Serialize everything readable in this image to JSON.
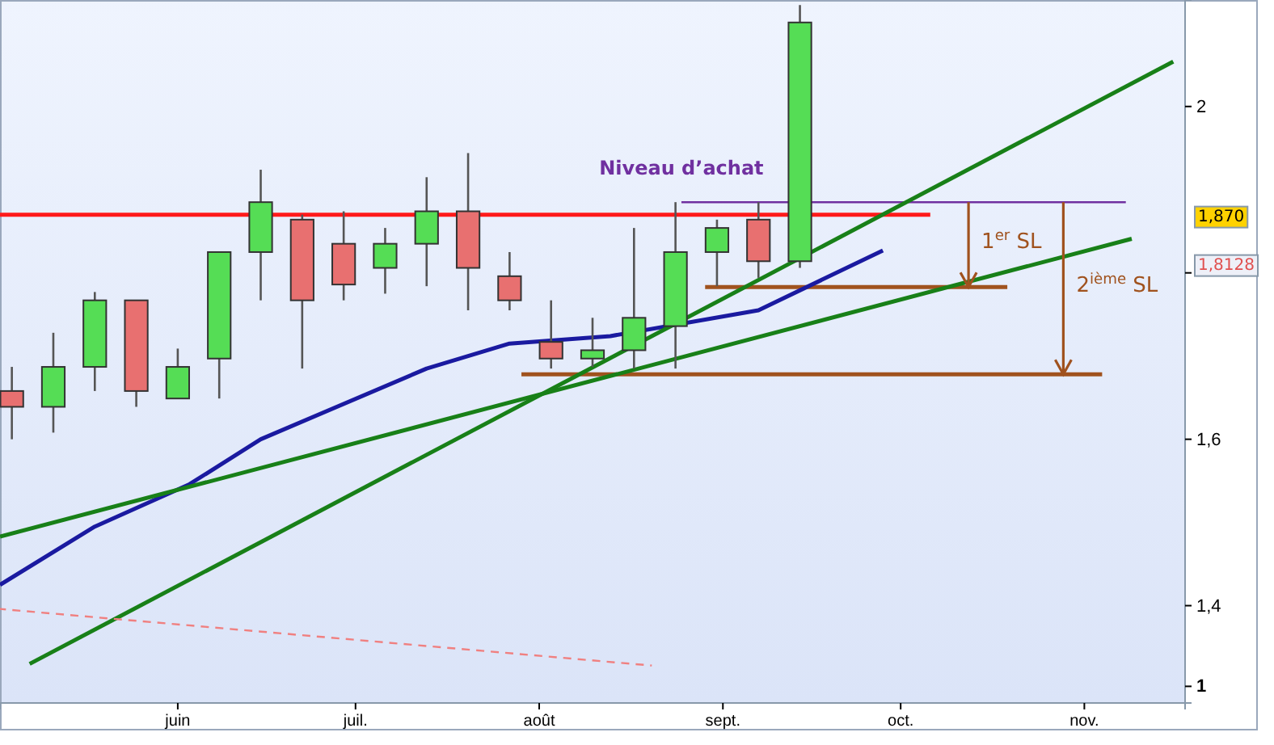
{
  "chart_data": {
    "type": "candlestick",
    "x": [
      "--05-04",
      "--05-11",
      "--05-18",
      "--05-25",
      "--06-01",
      "--06-08",
      "--06-15",
      "--06-22",
      "--06-29",
      "--07-06",
      "--07-13",
      "--07-20",
      "--07-27",
      "--08-03",
      "--08-10",
      "--08-17",
      "--08-24",
      "--08-31",
      "--09-07",
      "--09-14"
    ],
    "ohlc": [
      [
        1.658,
        1.687,
        1.6,
        1.639
      ],
      [
        1.639,
        1.728,
        1.608,
        1.687
      ],
      [
        1.687,
        1.777,
        1.658,
        1.767
      ],
      [
        1.767,
        1.767,
        1.639,
        1.658
      ],
      [
        1.649,
        1.709,
        1.649,
        1.687
      ],
      [
        1.697,
        1.825,
        1.649,
        1.825
      ],
      [
        1.825,
        1.924,
        1.767,
        1.885
      ],
      [
        1.864,
        1.87,
        1.685,
        1.767
      ],
      [
        1.835,
        1.874,
        1.767,
        1.786
      ],
      [
        1.806,
        1.854,
        1.775,
        1.835
      ],
      [
        1.835,
        1.915,
        1.784,
        1.874
      ],
      [
        1.874,
        1.944,
        1.755,
        1.806
      ],
      [
        1.796,
        1.825,
        1.755,
        1.767
      ],
      [
        1.717,
        1.767,
        1.685,
        1.697
      ],
      [
        1.697,
        1.746,
        1.687,
        1.707
      ],
      [
        1.707,
        1.854,
        1.685,
        1.746
      ],
      [
        1.736,
        1.885,
        1.685,
        1.825
      ],
      [
        1.825,
        1.864,
        1.784,
        1.854
      ],
      [
        1.864,
        1.885,
        1.794,
        1.814
      ],
      [
        1.814,
        2.122,
        1.806,
        2.101
      ]
    ],
    "colors": [
      "#e87070",
      "#55dd55",
      "#55dd55",
      "#e87070",
      "#55dd55",
      "#55dd55",
      "#55dd55",
      "#e87070",
      "#e87070",
      "#55dd55",
      "#55dd55",
      "#e87070",
      "#e87070",
      "#e87070",
      "#55dd55",
      "#55dd55",
      "#55dd55",
      "#55dd55",
      "#e87070",
      "#55dd55"
    ],
    "xlim": [
      "--05-02",
      "--11-18"
    ],
    "xticks": [
      {
        "value": "--06-01",
        "label": "juin"
      },
      {
        "value": "--07-01",
        "label": "juil."
      },
      {
        "value": "--08-01",
        "label": "août"
      },
      {
        "value": "--09-01",
        "label": "sept."
      },
      {
        "value": "--10-01",
        "label": "oct."
      },
      {
        "value": "--11-01",
        "label": "nov."
      }
    ],
    "ylim": [
      1.283,
      2.128
    ],
    "yticks": [
      {
        "value": 1.303,
        "label": "1"
      },
      {
        "value": 1.4,
        "label": "1,4"
      },
      {
        "value": 1.6,
        "label": "1,6"
      },
      {
        "value": 1.8,
        "label": null
      },
      2
    ],
    "grid": false,
    "marker": "none",
    "series": [
      {
        "type": "line",
        "color": "#ff1a1a",
        "x": [
          "--05-02",
          "--10-06"
        ],
        "values": [
          1.87,
          1.87
        ],
        "line_style": "solid"
      },
      {
        "type": "line",
        "name": "Niveau d’achat",
        "color": "#7030a0",
        "x": [
          "--08-25",
          "--11-08"
        ],
        "values": [
          1.885,
          1.885
        ],
        "line_style": "solid"
      },
      {
        "type": "line",
        "color": "#a0521e",
        "x": [
          "--08-29",
          "--10-19"
        ],
        "values": [
          1.783,
          1.783
        ],
        "line_style": "solid"
      },
      {
        "type": "line",
        "color": "#a0521e",
        "x": [
          "--07-29",
          "--11-04"
        ],
        "values": [
          1.678,
          1.678
        ],
        "line_style": "solid"
      },
      {
        "type": "line",
        "color": "#1a1aa0",
        "x": [
          "--05-02",
          "--05-18",
          "--06-03",
          "--06-15",
          "--07-13",
          "--07-27",
          "--08-13",
          "--09-07",
          "--09-28"
        ],
        "values": [
          1.425,
          1.495,
          1.546,
          1.6,
          1.685,
          1.715,
          1.724,
          1.755,
          1.827
        ],
        "line_style": "solid"
      },
      {
        "type": "line",
        "color": "#188018",
        "x": [
          "--05-02",
          "--11-09"
        ],
        "values": [
          1.483,
          1.841
        ],
        "line_style": "solid"
      },
      {
        "type": "line",
        "color": "#188018",
        "x": [
          "--05-07",
          "--11-16"
        ],
        "values": [
          1.33,
          2.054
        ],
        "line_style": "solid"
      },
      {
        "type": "line",
        "color": "#f08080",
        "x": [
          "--05-02",
          "--08-20"
        ],
        "values": [
          1.396,
          1.328
        ],
        "line_style": "dashed"
      }
    ],
    "annotations": [
      "1$^{er}$ SL",
      "2$^{ième}$ SL",
      "1,870",
      "1,8128"
    ]
  }
}
